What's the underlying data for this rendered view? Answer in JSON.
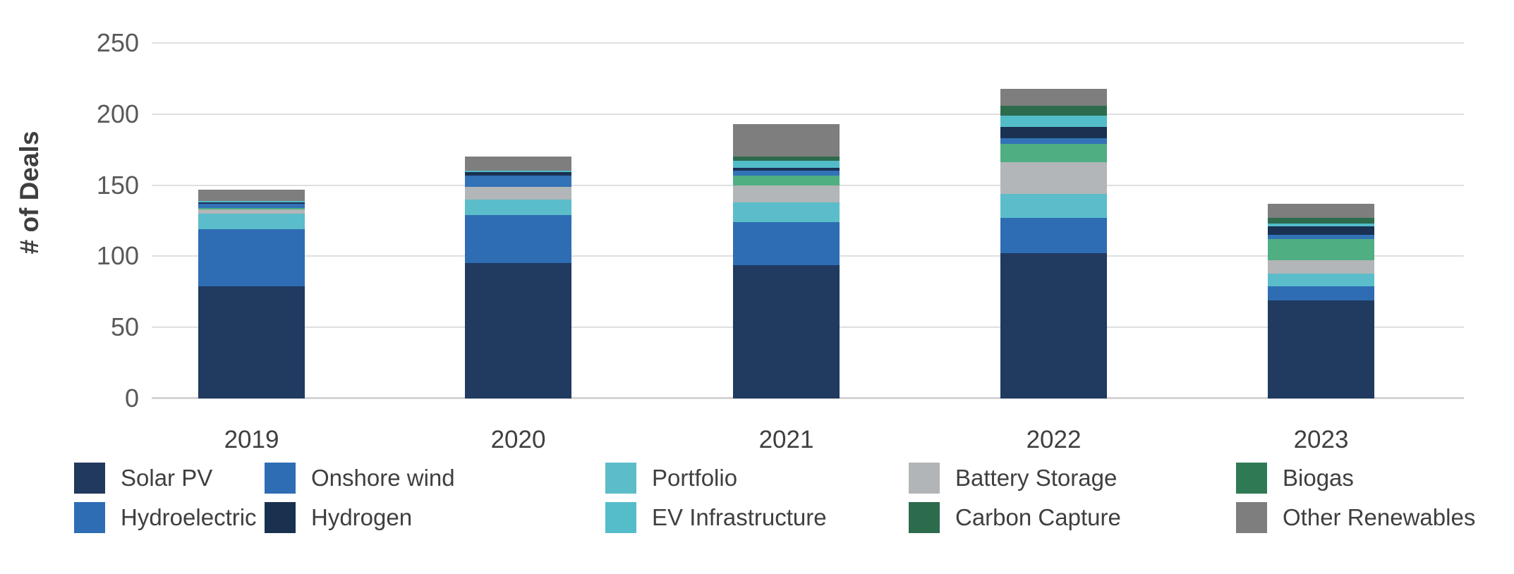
{
  "chart_data": {
    "type": "bar",
    "stacked": true,
    "title": "",
    "xlabel": "",
    "ylabel": "# of Deals",
    "ylim": [
      0,
      250
    ],
    "grid": true,
    "legend_position": "bottom",
    "categories": [
      "2019",
      "2020",
      "2021",
      "2022",
      "2023"
    ],
    "series": [
      {
        "name": "Solar PV",
        "color": "#203a60",
        "values": [
          79,
          95,
          94,
          102,
          69
        ]
      },
      {
        "name": "Onshore wind",
        "color": "#2e6db4",
        "values": [
          40,
          34,
          30,
          25,
          10
        ]
      },
      {
        "name": "Portfolio",
        "color": "#5bbdca",
        "values": [
          11,
          11,
          14,
          17,
          9
        ]
      },
      {
        "name": "Battery Storage",
        "color": "#b2b6b8",
        "values": [
          3,
          9,
          12,
          22,
          9
        ]
      },
      {
        "name": "Biogas",
        "color": "#4fae82",
        "values": [
          1,
          0,
          7,
          13,
          15
        ]
      },
      {
        "name": "Hydroelectric",
        "color": "#3272b7",
        "values": [
          3,
          8,
          3,
          4,
          3
        ]
      },
      {
        "name": "Hydrogen",
        "color": "#1a3152",
        "values": [
          1,
          2,
          2,
          8,
          6
        ]
      },
      {
        "name": "EV Infrastructure",
        "color": "#53bcc9",
        "values": [
          1,
          1,
          5,
          8,
          2
        ]
      },
      {
        "name": "Carbon Capture",
        "color": "#2d6b4d",
        "values": [
          0,
          0,
          3,
          7,
          4
        ]
      },
      {
        "name": "Other Renewables",
        "color": "#7e7e7e",
        "values": [
          8,
          10,
          23,
          12,
          10
        ]
      }
    ],
    "bar_totals": [
      147,
      170,
      193,
      218,
      137
    ]
  },
  "y_axis": {
    "label": "# of Deals",
    "ticks": [
      0,
      50,
      100,
      150,
      200,
      250
    ]
  },
  "legend": {
    "rows": 2,
    "items": [
      {
        "label": "Solar PV",
        "color": "#21395c"
      },
      {
        "label": "Onshore wind",
        "color": "#2e6db4"
      },
      {
        "label": "Portfolio",
        "color": "#5cbdc9"
      },
      {
        "label": "Battery Storage",
        "color": "#b1b5b7"
      },
      {
        "label": "Biogas",
        "color": "#2f7a54"
      },
      {
        "label": "Hydroelectric",
        "color": "#2e6db4"
      },
      {
        "label": "Hydrogen",
        "color": "#19304f"
      },
      {
        "label": "EV Infrastructure",
        "color": "#55bdc9"
      },
      {
        "label": "Carbon Capture",
        "color": "#2d6b4d"
      },
      {
        "label": "Other Renewables",
        "color": "#7e7e7e"
      }
    ]
  }
}
